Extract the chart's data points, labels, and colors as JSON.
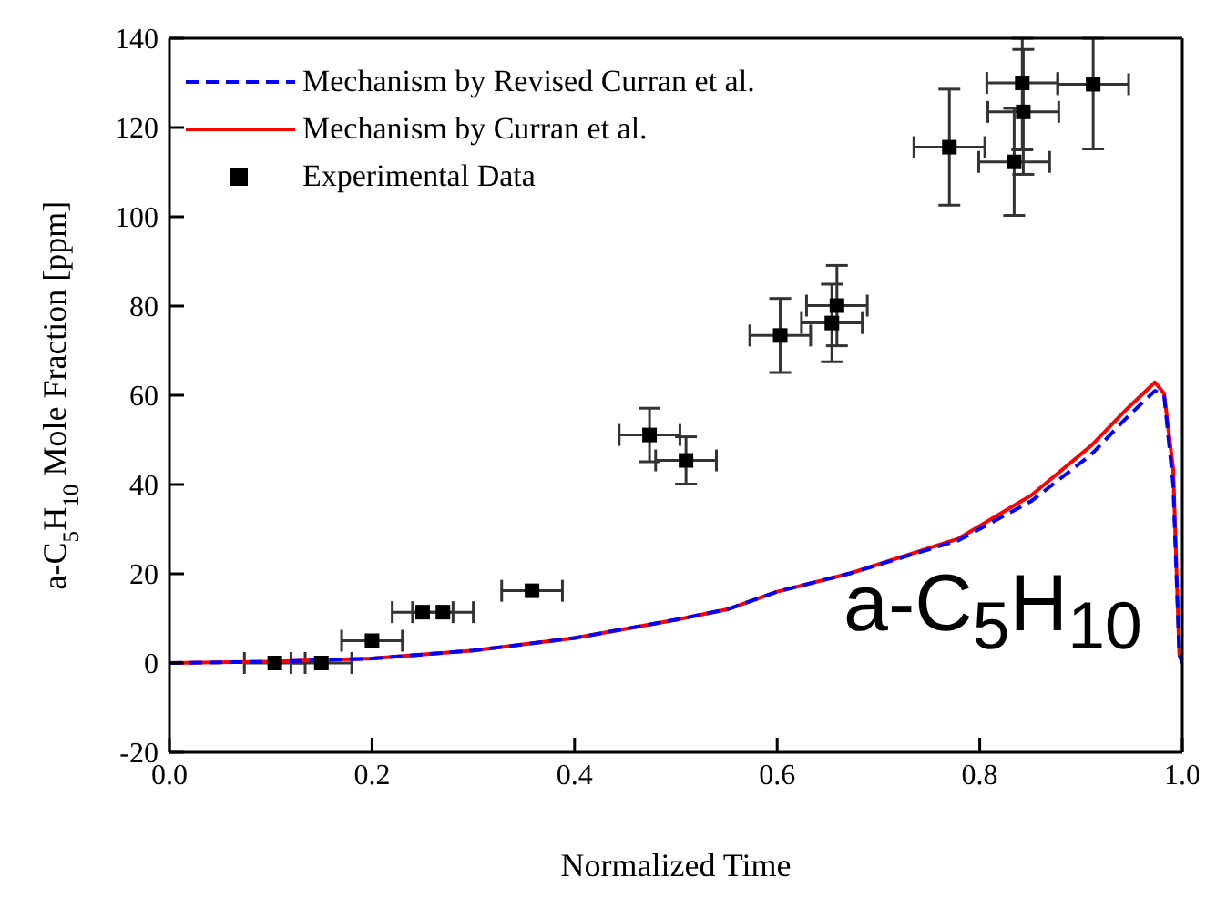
{
  "chart_data": {
    "type": "line",
    "xlabel": "Normalized Time",
    "ylabel": "a-C$_{5}$H$_{10}$ Mole Fraction [ppm]",
    "xlim": [
      0,
      1
    ],
    "xticks": [
      {
        "value": 0,
        "label": "0.0"
      },
      {
        "value": 0.2,
        "label": "0.2"
      },
      {
        "value": 0.4,
        "label": "0.4"
      },
      {
        "value": 0.6,
        "label": "0.6"
      },
      {
        "value": 0.8,
        "label": "0.8"
      },
      {
        "value": 1,
        "label": "1.0"
      }
    ],
    "ylim": [
      -20,
      140
    ],
    "yticks": [
      -20,
      0,
      20,
      40,
      60,
      80,
      100,
      120,
      140
    ],
    "grid": false,
    "legend": "top left",
    "annotations": [
      "a-C$_{5}$H$_{10}$"
    ],
    "series": [
      {
        "name": "Mechanism by Revised Curran et al.",
        "color": "#0000ff",
        "line_style": "dashed",
        "marker": "none",
        "x": [
          0,
          0.1,
          0.2,
          0.3,
          0.4,
          0.5,
          0.552,
          0.6,
          0.672,
          0.779,
          0.851,
          0.91,
          0.946,
          0.973,
          0.982,
          0.991,
          0.997,
          1
        ],
        "values": [
          0,
          0.3,
          1,
          2.8,
          5.6,
          9.7,
          12.1,
          16,
          20.1,
          27.5,
          36.3,
          46.7,
          55.2,
          61,
          60,
          40,
          2,
          0
        ]
      },
      {
        "name": "Mechanism by Curran et al.",
        "color": "#ff0000",
        "line_style": "solid",
        "marker": "none",
        "x": [
          0,
          0.1,
          0.2,
          0.3,
          0.4,
          0.5,
          0.552,
          0.6,
          0.672,
          0.779,
          0.851,
          0.91,
          0.946,
          0.973,
          0.982,
          0.991,
          0.997,
          1
        ],
        "values": [
          0,
          0.3,
          1,
          2.8,
          5.6,
          9.7,
          12.1,
          16,
          20.1,
          27.9,
          37.6,
          48.7,
          57.1,
          62.9,
          60.4,
          43.5,
          2,
          0
        ]
      },
      {
        "name": "Experimental Data",
        "type": "scatter",
        "color": "#000000",
        "marker": "square",
        "x": [
          0.104,
          0.15,
          0.2,
          0.25,
          0.27,
          0.358,
          0.474,
          0.51,
          0.603,
          0.654,
          0.659,
          0.77,
          0.834,
          0.843,
          0.842,
          0.912
        ],
        "values": [
          0,
          0,
          5,
          11.4,
          11.4,
          16.2,
          51.1,
          45.4,
          73.4,
          76.2,
          80.1,
          115.6,
          112.3,
          123.5,
          130,
          129.7
        ],
        "errors": [
          null,
          null,
          null,
          null,
          null,
          null,
          6,
          5.3,
          8.3,
          8.7,
          9,
          13,
          12,
          14,
          [
            115,
            140
          ],
          [
            115.2,
            140
          ]
        ],
        "xerrors": [
          0.03,
          0.03,
          0.03,
          0.03,
          0.03,
          0.03,
          0.03,
          0.03,
          0.03,
          0.03,
          0.03,
          0.035,
          0.035,
          0.035,
          0.035,
          0.035
        ]
      }
    ]
  }
}
